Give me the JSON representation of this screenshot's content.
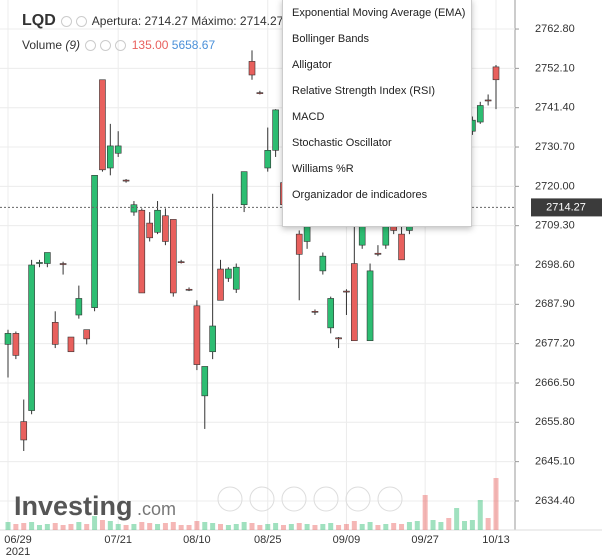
{
  "chart_data": {
    "type": "candlestick",
    "symbol": "LQD",
    "legend": {
      "open_label": "Apertura:",
      "open": 2714.27,
      "high_label": "Máximo:",
      "high": 2714.27,
      "volume_label": "Volume",
      "volume_period": "(9)",
      "volume_value": {
        "value": 135,
        "label": "135.00"
      },
      "volume_ma": 5658.67
    },
    "menu": [
      "Exponential Moving Average (EMA)",
      "Bollinger Bands",
      "Alligator",
      "Relative Strength Index (RSI)",
      "MACD",
      "Stochastic Oscillator",
      "Williams %R",
      "Organizador de indicadores"
    ],
    "logo": "Investing",
    "logo_suffix": ".com",
    "categories": [
      "06/29",
      null,
      null,
      null,
      null,
      null,
      null,
      null,
      null,
      null,
      null,
      null,
      null,
      null,
      "07/21",
      null,
      null,
      null,
      null,
      null,
      null,
      null,
      null,
      null,
      "08/10",
      null,
      null,
      null,
      null,
      null,
      null,
      null,
      null,
      "08/25",
      null,
      null,
      null,
      null,
      null,
      null,
      null,
      null,
      null,
      "09/09",
      null,
      null,
      null,
      null,
      null,
      null,
      null,
      null,
      null,
      "09/27",
      null,
      null,
      null,
      null,
      null,
      null,
      null,
      null,
      "10/13"
    ],
    "year_label": "2021",
    "open": [
      2677,
      2680,
      2656,
      2659,
      2699,
      2699,
      2683,
      2699,
      2679,
      2685,
      2681,
      2687,
      2749,
      2725,
      2729,
      2721.7,
      2713,
      2713.5,
      2710,
      2707.5,
      2712,
      2711,
      2699.5,
      2692,
      2687.5,
      2663,
      2675,
      2697.5,
      2695,
      2692,
      2715,
      2754,
      2745.5,
      2725,
      2729.8,
      2721,
      2712,
      2707,
      2705,
      2686,
      2697,
      2681.5,
      2678.8,
      2691.5,
      2699,
      2704,
      2678,
      2701.8,
      2704,
      2712,
      2707,
      2708,
      2714,
      2719,
      2716,
      2723,
      2727,
      2724,
      2730,
      2735,
      2737.5,
      2743.5,
      2752.5
    ],
    "high": [
      2681,
      2680.5,
      2662,
      2700,
      2700,
      2702,
      2686,
      2699.5,
      2679,
      2693,
      2681,
      2723,
      2749,
      2737,
      2735,
      2722,
      2716,
      2714,
      2713,
      2716,
      2714,
      2711,
      2700,
      2692.5,
      2689,
      2671,
      2718,
      2700,
      2698,
      2699,
      2724,
      2757,
      2746,
      2736,
      2741,
      2722,
      2718,
      2708,
      2711,
      2686.5,
      2702,
      2690,
      2679,
      2692,
      2712,
      2711,
      2699,
      2704,
      2710,
      2713,
      2712,
      2715,
      2720,
      2720,
      2724,
      2728,
      2728,
      2731,
      2736,
      2739,
      2743,
      2745,
      2753
    ],
    "low": [
      2668,
      2673,
      2648,
      2658,
      2698,
      2698,
      2676,
      2696,
      2675,
      2684,
      2677,
      2686,
      2724,
      2723,
      2728,
      2721,
      2712,
      2691,
      2705,
      2707,
      2704,
      2690,
      2699,
      2691.5,
      2670,
      2654,
      2673,
      2689,
      2694,
      2691,
      2713,
      2749,
      2745,
      2724,
      2728,
      2712,
      2711,
      2689,
      2703,
      2685,
      2696,
      2680,
      2676,
      2685,
      2678,
      2703,
      2678,
      2701,
      2703,
      2707,
      2700,
      2707,
      2713,
      2715,
      2715,
      2722,
      2723,
      2723,
      2729,
      2734,
      2737,
      2742,
      2741
    ],
    "close": [
      2680,
      2674,
      2651,
      2698.6,
      2699.3,
      2702,
      2677,
      2698.8,
      2675,
      2689.5,
      2678.5,
      2723,
      2724.5,
      2731,
      2731,
      2721.5,
      2715,
      2691,
      2706,
      2713.5,
      2705,
      2691,
      2699.3,
      2691.8,
      2671.5,
      2671,
      2682,
      2689,
      2697.5,
      2698,
      2724,
      2750.3,
      2745.3,
      2729.8,
      2740.8,
      2715,
      2717,
      2701.5,
      2709,
      2685.8,
      2701,
      2689.5,
      2678.5,
      2691.3,
      2678,
      2710,
      2697,
      2701.5,
      2709,
      2708,
      2700,
      2714,
      2719,
      2716,
      2723,
      2727,
      2724,
      2730,
      2735,
      2738,
      2742,
      2743.3,
      2749
    ],
    "volume": [
      8,
      6,
      7,
      8,
      5,
      6,
      7,
      5,
      6,
      8,
      6,
      14,
      10,
      9,
      6,
      5,
      6,
      8,
      7,
      6,
      7,
      8,
      5,
      5,
      9,
      8,
      7,
      6,
      5,
      6,
      8,
      7,
      5,
      6,
      7,
      5,
      6,
      7,
      6,
      5,
      6,
      7,
      5,
      6,
      9,
      6,
      8,
      5,
      6,
      7,
      6,
      8,
      9,
      35,
      10,
      8,
      12,
      22,
      9,
      10,
      30,
      12,
      52
    ],
    "up_color": "#2dbd72",
    "down_color": "#e8605d",
    "volume_ma_color": "#4a90d9",
    "ylim": [
      2626.5,
      2770.7
    ],
    "vlim": [
      0,
      100
    ],
    "yticks": [
      {
        "value": 2634.4,
        "label": "2634.40"
      },
      {
        "value": 2645.1,
        "label": "2645.10"
      },
      {
        "value": 2655.8,
        "label": "2655.80"
      },
      {
        "value": 2666.5,
        "label": "2666.50"
      },
      {
        "value": 2677.2,
        "label": "2677.20"
      },
      {
        "value": 2687.9,
        "label": "2687.90"
      },
      {
        "value": 2698.6,
        "label": "2698.60"
      },
      {
        "value": 2709.3,
        "label": "2709.30"
      },
      {
        "value": 2720,
        "label": "2720.00"
      },
      {
        "value": 2730.7,
        "label": "2730.70"
      },
      {
        "value": 2741.4,
        "label": "2741.40"
      },
      {
        "value": 2752.1,
        "label": "2752.10"
      },
      {
        "value": 2762.8,
        "label": "2762.80"
      }
    ],
    "last_price": 2714.27,
    "grid": true
  }
}
